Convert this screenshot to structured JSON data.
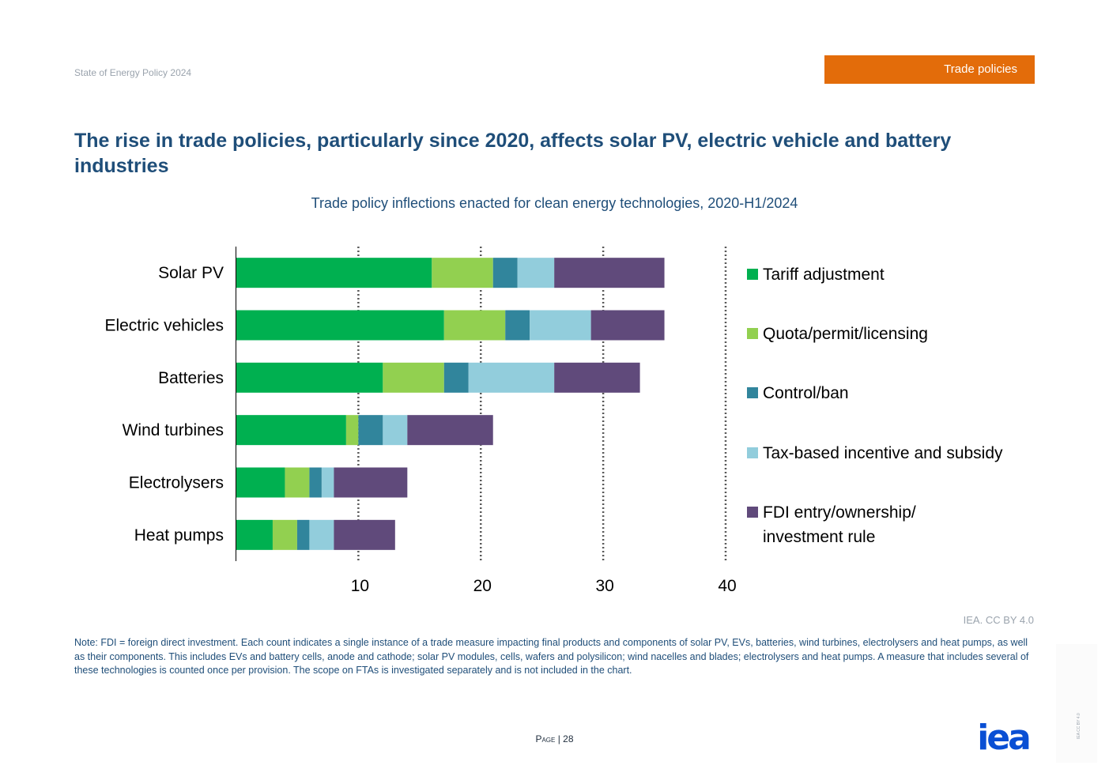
{
  "header": {
    "report_name": "State of Energy Policy 2024",
    "section_tag": "Trade policies",
    "section_color": "#e36c0a"
  },
  "title": "The rise in trade policies, particularly since 2020, affects solar PV, electric vehicle and battery industries",
  "chart_data": {
    "type": "bar",
    "orientation": "horizontal",
    "stacked": true,
    "title": "Trade policy inflections enacted for clean energy technologies, 2020-H1/2024",
    "xlabel": "",
    "ylabel": "",
    "xlim": [
      0,
      40
    ],
    "x_ticks": [
      10,
      20,
      30,
      40
    ],
    "x_tick_labels": [
      "10",
      "20",
      "30",
      "40"
    ],
    "grid": "vertical dotted",
    "legend_position": "right",
    "categories": [
      "Solar PV",
      "Electric vehicles",
      "Batteries",
      "Wind turbines",
      "Electrolysers",
      "Heat pumps"
    ],
    "series": [
      {
        "name": "Tariff adjustment",
        "color": "#00b050",
        "values": [
          16,
          17,
          12,
          9,
          4,
          3
        ]
      },
      {
        "name": "Quota/permit/licensing",
        "color": "#92d050",
        "values": [
          5,
          5,
          5,
          1,
          2,
          2
        ]
      },
      {
        "name": "Control/ban",
        "color": "#31859c",
        "values": [
          2,
          2,
          2,
          2,
          1,
          1
        ]
      },
      {
        "name": "Tax-based incentive and subsidy",
        "color": "#92cddc",
        "values": [
          3,
          5,
          7,
          2,
          1,
          2
        ]
      },
      {
        "name": "FDI entry/ownership/investment rule",
        "color": "#604a7b",
        "values": [
          9,
          6,
          7,
          7,
          6,
          5
        ]
      }
    ]
  },
  "attribution": "IEA. CC BY 4.0",
  "note": "Note: FDI = foreign direct investment. Each count indicates a single instance of a trade measure impacting final products and components of solar PV, EVs, batteries, wind turbines, electrolysers and heat pumps, as well as their components. This includes EVs and battery cells, anode and cathode; solar PV modules, cells, wafers and polysilicon; wind nacelles and blades; electrolysers and heat pumps. A measure that includes several of these technologies is counted once per provision. The scope on FTAs is investigated separately and is not included in the chart.",
  "footer": {
    "page_word": "Page",
    "page_separator": "|",
    "page_number": "28",
    "logo_text": "iea",
    "logo_color": "#0a4fd4",
    "side_text": "IEA CC BY 4.0"
  }
}
